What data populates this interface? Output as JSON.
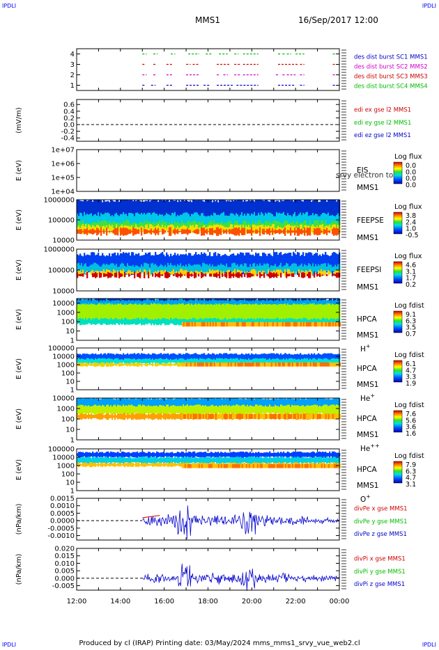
{
  "corners": {
    "tl": "IPDLI",
    "tr": "IPDLI",
    "bl": "IPDLI",
    "br": "IPDLI"
  },
  "header": {
    "mission": "MMS1",
    "datetime": "16/Sep/2017 12:00"
  },
  "footer": {
    "text": "Produced by cl (IRAP)   Printing date: 03/May/2024   mms_mms1_srvy_vue_web2.cl"
  },
  "colors": {
    "blue": "#0000cc",
    "green": "#00bb00",
    "red": "#cc0000",
    "magenta": "#cc00cc"
  },
  "chart_data": [
    {
      "id": "burst",
      "type": "line",
      "ylabel": "",
      "ylim": [
        0.5,
        4.5
      ],
      "yticks": [
        "1",
        "2",
        "3",
        "4"
      ],
      "legend": [
        {
          "text": "des dist burst SC1 MMS1",
          "color": "blue"
        },
        {
          "text": "des dist burst SC2 MMS2",
          "color": "magenta"
        },
        {
          "text": "des dist burst SC3 MMS3",
          "color": "red"
        },
        {
          "text": "des dist burst SC4 MMS4",
          "color": "green"
        }
      ],
      "bursts": [
        {
          "level": 4,
          "color": "green",
          "segments": [
            [
              15.0,
              15.2
            ],
            [
              15.5,
              15.7
            ],
            [
              16.3,
              16.5
            ],
            [
              17.1,
              17.6
            ],
            [
              17.9,
              18.2
            ],
            [
              18.5,
              18.9
            ],
            [
              19.2,
              19.4
            ],
            [
              19.6,
              20.3
            ],
            [
              21.2,
              21.3
            ],
            [
              21.4,
              21.5
            ],
            [
              21.6,
              21.8
            ],
            [
              22.0,
              22.4
            ],
            [
              23.7,
              23.8
            ]
          ]
        },
        {
          "level": 3,
          "color": "red",
          "segments": [
            [
              15.0,
              15.1
            ],
            [
              15.5,
              15.6
            ],
            [
              16.1,
              16.4
            ],
            [
              17.0,
              17.2
            ],
            [
              17.3,
              17.6
            ],
            [
              18.4,
              19.0
            ],
            [
              19.2,
              19.5
            ],
            [
              19.6,
              20.3
            ],
            [
              21.2,
              22.1
            ],
            [
              22.2,
              22.4
            ],
            [
              23.7,
              23.8
            ]
          ]
        },
        {
          "level": 2,
          "color": "magenta",
          "segments": [
            [
              15.0,
              15.2
            ],
            [
              15.5,
              15.6
            ],
            [
              16.1,
              16.4
            ],
            [
              17.0,
              17.6
            ],
            [
              18.4,
              18.5
            ],
            [
              18.7,
              18.9
            ],
            [
              19.2,
              19.5
            ],
            [
              19.6,
              20.3
            ],
            [
              21.1,
              21.2
            ],
            [
              21.4,
              21.5
            ],
            [
              21.6,
              22.0
            ],
            [
              22.2,
              22.4
            ],
            [
              23.7,
              23.8
            ]
          ]
        },
        {
          "level": 1,
          "color": "blue",
          "segments": [
            [
              15.0,
              15.1
            ],
            [
              15.4,
              15.6
            ],
            [
              16.1,
              16.4
            ],
            [
              17.0,
              17.6
            ],
            [
              17.8,
              18.1
            ],
            [
              18.4,
              19.2
            ],
            [
              19.3,
              20.3
            ],
            [
              21.2,
              22.0
            ],
            [
              22.2,
              22.4
            ],
            [
              23.7,
              23.8
            ]
          ]
        }
      ]
    },
    {
      "id": "edi",
      "type": "line",
      "ylabel": "(mV/m)",
      "ylim": [
        -0.5,
        0.75
      ],
      "yticks": [
        "0.6",
        "0.4",
        "0.2",
        "0.0",
        "-0.2",
        "-0.4"
      ],
      "legend": [
        {
          "text": "edi ex gse l2 MMS1",
          "color": "red"
        },
        {
          "text": "edi ey gse l2 MMS1",
          "color": "green"
        },
        {
          "text": "edi ez gse l2 MMS1",
          "color": "blue"
        }
      ]
    },
    {
      "id": "eis",
      "type": "heatmap",
      "ylabel": "E (eV)",
      "ylim": [
        10000,
        10000000
      ],
      "log": true,
      "yticks": [
        "1e+07",
        "1e+06",
        "1e+05",
        "1e+04"
      ],
      "labels": [
        "EIS",
        "MMS1"
      ],
      "overlay": "srvy electron to",
      "cbar_title": "Log flux",
      "cbar_ticks": [
        "0.0",
        "0.0",
        "0.0",
        "0.0"
      ]
    },
    {
      "id": "feepse",
      "type": "heatmap",
      "ylabel": "E (eV)",
      "ylim": [
        10000,
        1000000
      ],
      "log": true,
      "yticks": [
        "1000000",
        "100000",
        "10000"
      ],
      "labels": [
        "FEEPSE",
        "MMS1"
      ],
      "cbar_title": "Log flux",
      "cbar_ticks": [
        "3.8",
        "2.4",
        "1.0",
        "-0.5"
      ]
    },
    {
      "id": "feepsi",
      "type": "heatmap",
      "ylabel": "E (eV)",
      "ylim": [
        10000,
        1000000
      ],
      "log": true,
      "yticks": [
        "1000000",
        "100000",
        "10000"
      ],
      "labels": [
        "FEEPSI",
        "MMS1"
      ],
      "cbar_title": "Log flux",
      "cbar_ticks": [
        "4.6",
        "3.1",
        "1.7",
        "0.2"
      ]
    },
    {
      "id": "hpca_h",
      "type": "heatmap",
      "ylabel": "E (eV)",
      "ylim": [
        1,
        30000
      ],
      "log": true,
      "yticks": [
        "10000",
        "1000",
        "100",
        "10",
        "1"
      ],
      "labels": [
        "HPCA",
        "MMS1"
      ],
      "species": "H",
      "charge": "+",
      "cbar_title": "Log fdist",
      "cbar_ticks": [
        "9.1",
        "6.3",
        "3.5",
        "0.7"
      ]
    },
    {
      "id": "hpca_he",
      "type": "heatmap",
      "ylabel": "E (eV)",
      "ylim": [
        1,
        100000
      ],
      "log": true,
      "yticks": [
        "100000",
        "10000",
        "1000",
        "100",
        "10",
        "1"
      ],
      "labels": [
        "HPCA",
        "MMS1"
      ],
      "species": "He",
      "charge": "+",
      "cbar_title": "Log fdist",
      "cbar_ticks": [
        "6.1",
        "4.7",
        "3.3",
        "1.9"
      ]
    },
    {
      "id": "hpca_hepp",
      "type": "heatmap",
      "ylabel": "E (eV)",
      "ylim": [
        1,
        10000
      ],
      "log": true,
      "yticks": [
        "10000",
        "1000",
        "100",
        "10",
        "1"
      ],
      "labels": [
        "HPCA",
        "MMS1"
      ],
      "species": "He",
      "charge": "++",
      "cbar_title": "Log fdist",
      "cbar_ticks": [
        "7.6",
        "5.6",
        "3.6",
        "1.6"
      ]
    },
    {
      "id": "hpca_o",
      "type": "heatmap",
      "ylabel": "E (eV)",
      "ylim": [
        1,
        100000
      ],
      "log": true,
      "yticks": [
        "100000",
        "10000",
        "1000",
        "100",
        "10",
        "1"
      ],
      "labels": [
        "HPCA",
        "MMS1"
      ],
      "species": "O",
      "charge": "+",
      "cbar_title": "Log fdist",
      "cbar_ticks": [
        "7.9",
        "6.3",
        "4.7",
        "3.1"
      ]
    },
    {
      "id": "divpe",
      "type": "line",
      "ylabel": "(nPa/km)",
      "ylim": [
        -0.0013,
        0.0015
      ],
      "yticks": [
        "0.0015",
        "0.0010",
        "0.0005",
        "0.0000",
        "-0.0005",
        "-0.0010"
      ],
      "legend": [
        {
          "text": "divPe x gse MMS1",
          "color": "red"
        },
        {
          "text": "divPe y gse MMS1",
          "color": "green"
        },
        {
          "text": "divPe z gse MMS1",
          "color": "blue"
        }
      ]
    },
    {
      "id": "divpi",
      "type": "line",
      "ylabel": "(nPa/km)",
      "ylim": [
        -0.008,
        0.02
      ],
      "yticks": [
        "0.020",
        "0.015",
        "0.010",
        "0.005",
        "0.000",
        "-0.005"
      ],
      "legend": [
        {
          "text": "divPi x gse MMS1",
          "color": "red"
        },
        {
          "text": "divPi y gse MMS1",
          "color": "green"
        },
        {
          "text": "divPi z gse MMS1",
          "color": "blue"
        }
      ]
    }
  ],
  "xaxis": {
    "range": [
      12,
      24
    ],
    "ticks": [
      "12:00",
      "14:00",
      "16:00",
      "18:00",
      "20:00",
      "22:00",
      "00:00"
    ]
  }
}
